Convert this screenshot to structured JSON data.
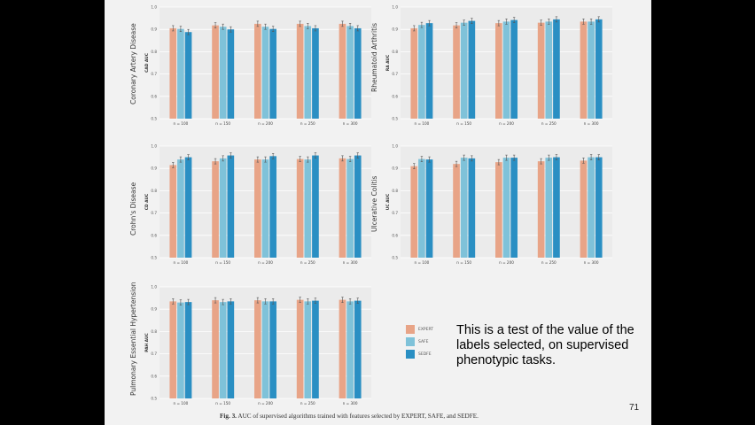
{
  "caption": {
    "label": "Fig. 3.",
    "text": "AUC of supervised algorithms trained with features selected by EXPERT, SAFE, and SEDFE."
  },
  "note": "This is a test of the value of the labels selected, on supervised phenotypic tasks.",
  "page_number": "71",
  "legend": [
    {
      "name": "EXPERT",
      "color": "#e8a487"
    },
    {
      "name": "SAFE",
      "color": "#7fc2d9"
    },
    {
      "name": "SEDFE",
      "color": "#2a8fc3"
    }
  ],
  "chart_data": [
    {
      "type": "bar",
      "title": "Coronary Artery Disease",
      "ylabel": "CAD AUC",
      "categories": [
        "n = 100",
        "n = 150",
        "n = 200",
        "n = 250",
        "n = 300"
      ],
      "yticks": [
        "0.5",
        "0.6",
        "0.7",
        "0.8",
        "0.9",
        "1.0"
      ],
      "ylim": [
        0.5,
        1.0
      ],
      "series": [
        {
          "name": "EXPERT",
          "values": [
            0.905,
            0.918,
            0.925,
            0.925,
            0.925
          ]
        },
        {
          "name": "SAFE",
          "values": [
            0.902,
            0.912,
            0.912,
            0.915,
            0.915
          ]
        },
        {
          "name": "SEDFE",
          "values": [
            0.888,
            0.9,
            0.902,
            0.905,
            0.905
          ]
        }
      ]
    },
    {
      "type": "bar",
      "title": "Rheumatoid Arthritis",
      "ylabel": "RA AUC",
      "categories": [
        "n = 100",
        "n = 150",
        "n = 200",
        "n = 250",
        "n = 300"
      ],
      "yticks": [
        "0.5",
        "0.6",
        "0.7",
        "0.8",
        "0.9",
        "1.0"
      ],
      "ylim": [
        0.5,
        1.0
      ],
      "series": [
        {
          "name": "EXPERT",
          "values": [
            0.905,
            0.918,
            0.928,
            0.93,
            0.935
          ]
        },
        {
          "name": "SAFE",
          "values": [
            0.92,
            0.93,
            0.935,
            0.935,
            0.935
          ]
        },
        {
          "name": "SEDFE",
          "values": [
            0.928,
            0.938,
            0.942,
            0.945,
            0.945
          ]
        }
      ]
    },
    {
      "type": "bar",
      "title": "Crohn's Disease",
      "ylabel": "CD AUC",
      "categories": [
        "n = 100",
        "n = 150",
        "n = 200",
        "n = 250",
        "n = 300"
      ],
      "yticks": [
        "0.5",
        "0.6",
        "0.7",
        "0.8",
        "0.9",
        "1.0"
      ],
      "ylim": [
        0.5,
        1.0
      ],
      "series": [
        {
          "name": "EXPERT",
          "values": [
            0.915,
            0.932,
            0.94,
            0.942,
            0.945
          ]
        },
        {
          "name": "SAFE",
          "values": [
            0.94,
            0.945,
            0.94,
            0.94,
            0.942
          ]
        },
        {
          "name": "SEDFE",
          "values": [
            0.95,
            0.958,
            0.955,
            0.958,
            0.958
          ]
        }
      ]
    },
    {
      "type": "bar",
      "title": "Ulcerative Colitis",
      "ylabel": "UC AUC",
      "categories": [
        "n = 100",
        "n = 150",
        "n = 200",
        "n = 250",
        "n = 300"
      ],
      "yticks": [
        "0.5",
        "0.6",
        "0.7",
        "0.8",
        "0.9",
        "1.0"
      ],
      "ylim": [
        0.5,
        1.0
      ],
      "series": [
        {
          "name": "EXPERT",
          "values": [
            0.91,
            0.92,
            0.928,
            0.932,
            0.935
          ]
        },
        {
          "name": "SAFE",
          "values": [
            0.942,
            0.948,
            0.948,
            0.948,
            0.95
          ]
        },
        {
          "name": "SEDFE",
          "values": [
            0.94,
            0.945,
            0.948,
            0.95,
            0.95
          ]
        }
      ]
    },
    {
      "type": "bar",
      "title": "Pulmonary Essential Hypertension",
      "ylabel": "PAH AUC",
      "categories": [
        "n = 100",
        "n = 150",
        "n = 200",
        "n = 250",
        "n = 300"
      ],
      "yticks": [
        "0.5",
        "0.6",
        "0.7",
        "0.8",
        "0.9",
        "1.0"
      ],
      "ylim": [
        0.5,
        1.0
      ],
      "series": [
        {
          "name": "EXPERT",
          "values": [
            0.935,
            0.94,
            0.94,
            0.942,
            0.942
          ]
        },
        {
          "name": "SAFE",
          "values": [
            0.93,
            0.932,
            0.935,
            0.935,
            0.935
          ]
        },
        {
          "name": "SEDFE",
          "values": [
            0.932,
            0.935,
            0.935,
            0.938,
            0.938
          ]
        }
      ]
    }
  ]
}
